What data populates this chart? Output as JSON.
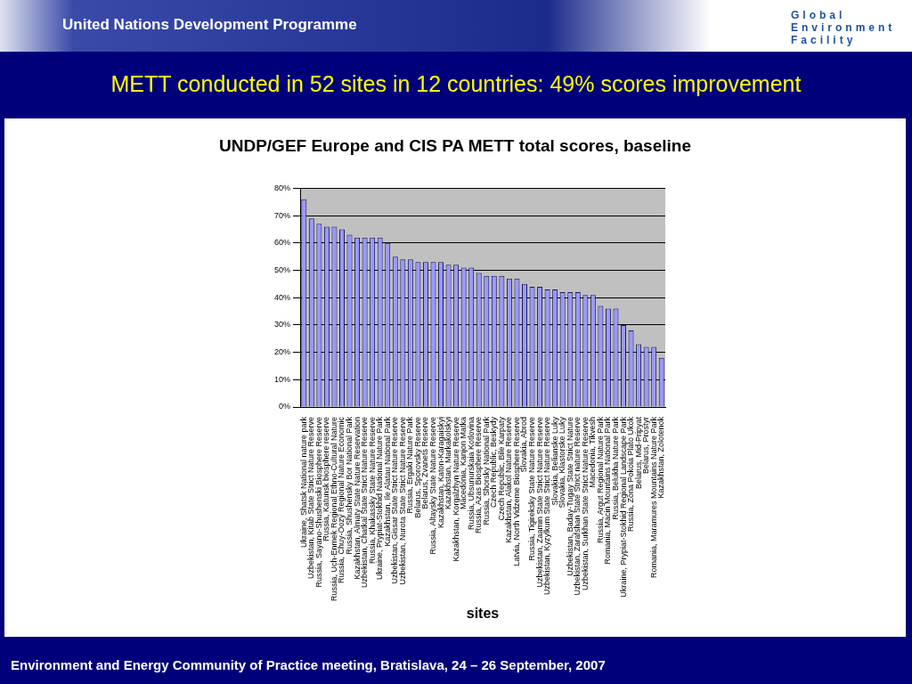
{
  "chart_data": {
    "type": "bar",
    "title": "METT conducted in 52 sites in 12 countries: 49% scores improvement",
    "subtitle": "UNDP/GEF Europe and CIS PA METT total scores, baseline",
    "xlabel": "sites",
    "categories": [
      "Ukraine, Shatsk National nature park",
      "Uzbekistan, Kitab State Strict Nature Reserve",
      "Russia, Sayano-Shushenski Biosphere Reserve",
      "Russia, Katunsk biosphere reserve",
      "Russia, Uch-Enmek Regional Ethno-Cultural Nature",
      "Russia, Chuy-Oozy Regional Nature Economic",
      "Russia, Shushensky Bor National Park",
      "Kazakhstan, Almaty State Nature Reservation",
      "Uzbekistan, Chatkal State Strict Nature Reserve",
      "Russia, Khakassky State Nature Reserve",
      "Ukraine, Prypiat-Stokhid National Nature Park",
      "Kazakhstan, Ile Alatau National Park",
      "Uzbekistan, Gissar State Strict Nature Reserve",
      "Uzbekistan, Nurota State Strict Nature Reserve",
      "Russia, Ergaki Nature Park",
      "Belarus, Sporovsky Reserve",
      "Belarus, Zvanets Reserve",
      "Russia, Altaysky State Nature Reserve",
      "Kazakhstan, Katon-Karagaiskyi",
      "Kazakhstan, Markakolskyi",
      "Kazakhstan, Korgalzhyn Nature Reserve",
      "Macedonia, Kanjon Matka",
      "Russia, Ubsunurskaia Kotlovina",
      "Russia, Azas Biosphere Reserve",
      "Russia, Shorsky National Park",
      "Czech Republic, Beskydy",
      "Czech Republic, Bile Karpaty",
      "Kazakhstan, Alakol Nature Reserve",
      "Latvia, North Vidzeme Biosphere Reserve",
      "Slovakia, Abrod",
      "Russia, Tigireksky State Nature Reserve",
      "Uzbekistan, Zaamin State Strict Nature Reserve",
      "Uzbekistan, Kyzylkum State Strict Nature Reserve",
      "Slovakia, Belianske Luky",
      "Slovakia, Klastorske Luky",
      "Uzbekistan, Baday-Tugay State Strict Nature",
      "Uzbekistan, Zarafshan State Strict nature Reserve",
      "Uzbekistan, Surkhan State Strict Nature Reserve",
      "Macedonia, Tikvesh",
      "Russia, Argut Regional Nature Park",
      "Romania, Macin Mountains National Park",
      "Russia, Belukha Nature Park",
      "Ukraine, Prypiat-Stokhid Regional Landscape Park",
      "Russia, Zona Pokoia Plato Ukok",
      "Belarus, Mid-Pripyat",
      "Belarus, Prostyr",
      "Romania, Maramures Mountains Nature Park",
      "Kazakhstan, Zolotenok"
    ],
    "values": [
      76,
      69,
      67,
      66,
      66,
      65,
      63,
      62,
      62,
      62,
      62,
      60,
      55,
      54,
      54,
      53,
      53,
      53,
      53,
      52,
      52,
      51,
      51,
      49,
      48,
      48,
      48,
      47,
      47,
      45,
      44,
      44,
      43,
      43,
      42,
      42,
      42,
      41,
      41,
      37,
      36,
      36,
      30,
      28,
      23,
      22,
      22,
      18
    ],
    "color": "#9999ff",
    "ylim": [
      0,
      80
    ],
    "yticks": [
      {
        "value": 0,
        "label": "0%"
      },
      {
        "value": 10,
        "label": "10%"
      },
      {
        "value": 20,
        "label": "20%"
      },
      {
        "value": 30,
        "label": "30%"
      },
      {
        "value": 40,
        "label": "40%"
      },
      {
        "value": 50,
        "label": "50%"
      },
      {
        "value": 60,
        "label": "60%"
      },
      {
        "value": 70,
        "label": "70%"
      },
      {
        "value": 80,
        "label": "80%"
      }
    ],
    "grid": "y",
    "legend": false,
    "annotations": [
      "United Nations Development Programme",
      "Global Environment Facility",
      "Environment and Energy Community of Practice meeting, Bratislava, 24 – 26 September, 2007"
    ]
  }
}
